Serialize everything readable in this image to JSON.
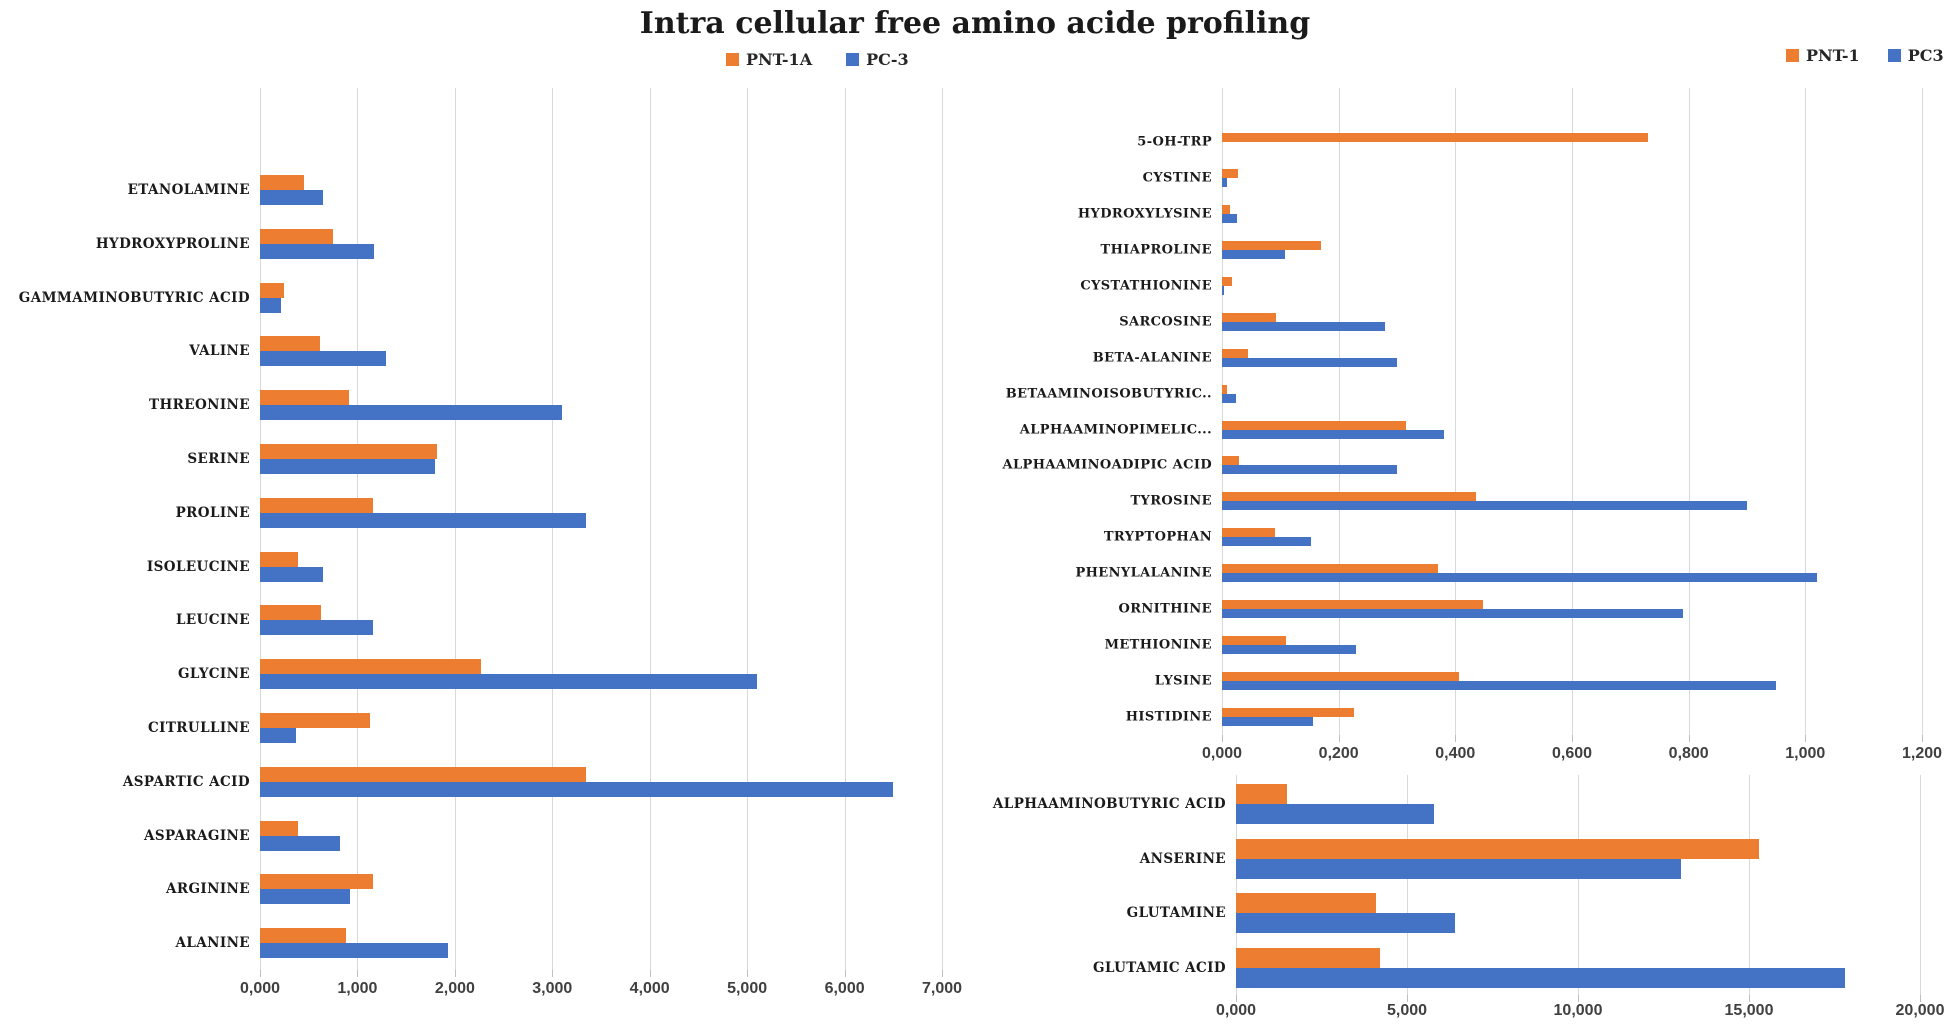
{
  "title": "Intra cellular free amino acide profiling",
  "colors": {
    "orange_series": "#ED7D31",
    "blue_series": "#4472C4",
    "gridline": "#D9D9D9",
    "label_text": "#1A1A1A",
    "tick_text": "#404040"
  },
  "chart_data": [
    {
      "id": "left-amino-acids",
      "type": "bar",
      "orientation": "horizontal",
      "grid": true,
      "legend_position": "top",
      "xlim": [
        0,
        7000
      ],
      "xticks": [
        "0,000",
        "1,000",
        "2,000",
        "3,000",
        "4,000",
        "5,000",
        "6,000",
        "7,000"
      ],
      "categories": [
        "ETANOLAMINE",
        "HYDROXYPROLINE",
        "GAMMAMINOBUTYRIC ACID",
        "VALINE",
        "THREONINE",
        "SERINE",
        "PROLINE",
        "ISOLEUCINE",
        "LEUCINE",
        "GLYCINE",
        "CITRULLINE",
        "ASPARTIC ACID",
        "ASPARAGINE",
        "ARGININE",
        "ALANINE"
      ],
      "series": [
        {
          "name": "PNT-1A",
          "color": "#ED7D31",
          "values": [
            450,
            750,
            245,
            620,
            910,
            1820,
            1160,
            390,
            625,
            2270,
            1130,
            3350,
            390,
            1160,
            880
          ]
        },
        {
          "name": "PC-3",
          "color": "#4472C4",
          "values": [
            650,
            1170,
            220,
            1290,
            3100,
            1800,
            3350,
            645,
            1160,
            5100,
            370,
            6500,
            820,
            925,
            1930
          ]
        }
      ]
    },
    {
      "id": "right-top-amino-acids",
      "type": "bar",
      "orientation": "horizontal",
      "grid": true,
      "legend_position": "top",
      "xlim": [
        0,
        1.2
      ],
      "xticks": [
        "0,000",
        "0,200",
        "0,400",
        "0,600",
        "0,800",
        "1,000",
        "1,200"
      ],
      "categories": [
        "5-OH-TRP",
        "CYSTINE",
        "HYDROXYLYSINE",
        "THIAPROLINE",
        "CYSTATHIONINE",
        "SARCOSINE",
        "BETA-ALANINE",
        "BETAAMINOISOBUTYRIC..",
        "ALPHAAMINOPIMELIC...",
        "ALPHAAMINOADIPIC ACID",
        "TYROSINE",
        "TRYPTOPHAN",
        "PHENYLALANINE",
        "ORNITHINE",
        "METHIONINE",
        "LYSINE",
        "HISTIDINE"
      ],
      "series": [
        {
          "name": "PNT-1",
          "color": "#ED7D31",
          "values": [
            0.73,
            0.027,
            0.014,
            0.17,
            0.017,
            0.093,
            0.045,
            0.008,
            0.315,
            0.029,
            0.435,
            0.09,
            0.37,
            0.447,
            0.11,
            0.406,
            0.226
          ]
        },
        {
          "name": "PC3",
          "color": "#4472C4",
          "values": [
            0,
            0.009,
            0.025,
            0.108,
            0.003,
            0.28,
            0.3,
            0.024,
            0.38,
            0.3,
            0.9,
            0.153,
            1.02,
            0.79,
            0.23,
            0.95,
            0.156
          ]
        }
      ]
    },
    {
      "id": "right-bottom-amino-acids",
      "type": "bar",
      "orientation": "horizontal",
      "grid": true,
      "legend_position": "none",
      "xlim": [
        0,
        20000
      ],
      "xticks": [
        "0,000",
        "5,000",
        "10,000",
        "15,000",
        "20,000"
      ],
      "categories": [
        "ALPHAAMINOBUTYRIC ACID",
        "ANSERINE",
        "GLUTAMINE",
        "GLUTAMIC ACID"
      ],
      "series": [
        {
          "name": "PNT-1",
          "color": "#ED7D31",
          "values": [
            1500,
            15300,
            4100,
            4200
          ]
        },
        {
          "name": "PC3",
          "color": "#4472C4",
          "values": [
            5800,
            13000,
            6400,
            17800
          ]
        }
      ]
    }
  ]
}
